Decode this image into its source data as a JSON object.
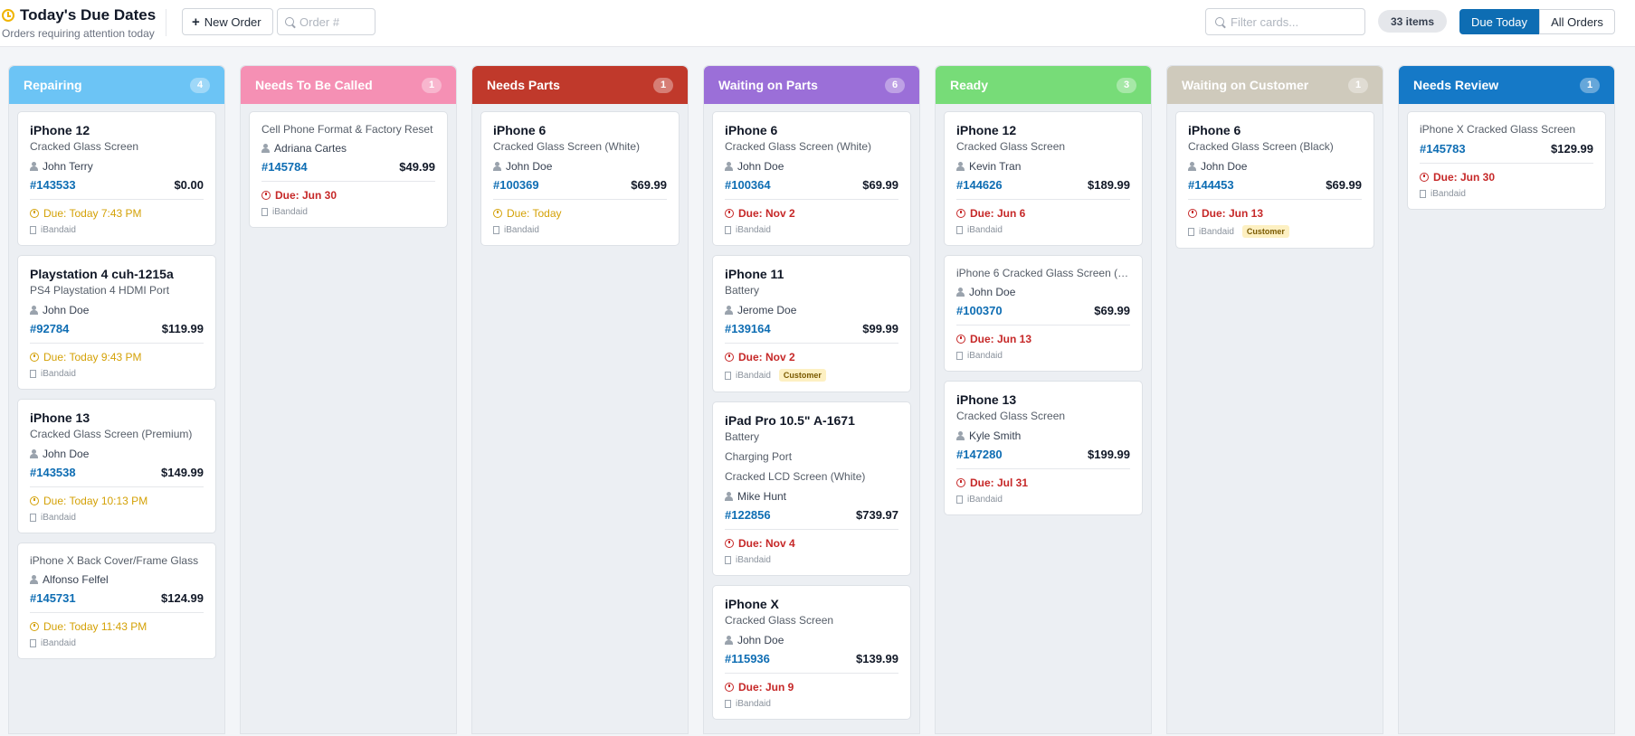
{
  "header": {
    "title": "Today's Due Dates",
    "subtitle": "Orders requiring attention today",
    "new_order_label": "New Order",
    "order_search_placeholder": "Order #",
    "filter_placeholder": "Filter cards...",
    "items_count": "33 items",
    "tabs": [
      "Due Today",
      "All Orders"
    ]
  },
  "colors": {
    "repairing": "#6cc4f5",
    "needs_called": "#f590b4",
    "needs_parts": "#c0392b",
    "waiting_parts": "#9b6fd8",
    "ready": "#77dc78",
    "waiting_customer": "#cfcabc",
    "needs_review": "#1579c7"
  },
  "columns": [
    {
      "title": "Repairing",
      "count": "4",
      "cards": [
        {
          "device": "iPhone 12",
          "services": [
            "Cracked Glass Screen"
          ],
          "customer": "John Terry",
          "order": "#143533",
          "price": "$0.00",
          "due": "Due: Today 7:43 PM",
          "due_type": "today",
          "location": "iBandaid"
        },
        {
          "device": "Playstation 4 cuh-1215a",
          "services": [
            "PS4 Playstation 4 HDMI Port"
          ],
          "customer": "John Doe",
          "order": "#92784",
          "price": "$119.99",
          "due": "Due: Today 9:43 PM",
          "due_type": "today",
          "location": "iBandaid"
        },
        {
          "device": "iPhone 13",
          "services": [
            "Cracked Glass Screen (Premium)"
          ],
          "customer": "John Doe",
          "order": "#143538",
          "price": "$149.99",
          "due": "Due: Today 10:13 PM",
          "due_type": "today",
          "location": "iBandaid"
        },
        {
          "device": "",
          "services": [
            "iPhone X Back Cover/Frame Glass"
          ],
          "customer": "Alfonso Felfel",
          "order": "#145731",
          "price": "$124.99",
          "due": "Due: Today 11:43 PM",
          "due_type": "today",
          "location": "iBandaid"
        }
      ]
    },
    {
      "title": "Needs To Be Called",
      "count": "1",
      "cards": [
        {
          "device": "",
          "services": [
            "Cell Phone Format & Factory Reset"
          ],
          "customer": "Adriana Cartes",
          "order": "#145784",
          "price": "$49.99",
          "due": "Due: Jun 30",
          "due_type": "late",
          "location": "iBandaid"
        }
      ]
    },
    {
      "title": "Needs Parts",
      "count": "1",
      "cards": [
        {
          "device": "iPhone 6",
          "services": [
            "Cracked Glass Screen (White)"
          ],
          "customer": "John Doe",
          "order": "#100369",
          "price": "$69.99",
          "due": "Due: Today",
          "due_type": "today",
          "location": "iBandaid"
        }
      ]
    },
    {
      "title": "Waiting on Parts",
      "count": "6",
      "cards": [
        {
          "device": "iPhone 6",
          "services": [
            "Cracked Glass Screen (White)"
          ],
          "customer": "John Doe",
          "order": "#100364",
          "price": "$69.99",
          "due": "Due: Nov 2",
          "due_type": "late",
          "location": "iBandaid"
        },
        {
          "device": "iPhone 11",
          "services": [
            "Battery"
          ],
          "customer": "Jerome Doe",
          "order": "#139164",
          "price": "$99.99",
          "due": "Due: Nov 2",
          "due_type": "late",
          "location": "iBandaid",
          "tag": "Customer"
        },
        {
          "device": "iPad Pro 10.5\" A-1671",
          "services": [
            "Battery",
            "Charging Port",
            "Cracked LCD Screen (White)"
          ],
          "customer": "Mike Hunt",
          "order": "#122856",
          "price": "$739.97",
          "due": "Due: Nov 4",
          "due_type": "late",
          "location": "iBandaid"
        },
        {
          "device": "iPhone X",
          "services": [
            "Cracked Glass Screen"
          ],
          "customer": "John Doe",
          "order": "#115936",
          "price": "$139.99",
          "due": "Due: Jun 9",
          "due_type": "late",
          "location": "iBandaid"
        }
      ]
    },
    {
      "title": "Ready",
      "count": "3",
      "cards": [
        {
          "device": "iPhone 12",
          "services": [
            "Cracked Glass Screen"
          ],
          "customer": "Kevin Tran",
          "order": "#144626",
          "price": "$189.99",
          "due": "Due: Jun 6",
          "due_type": "late",
          "location": "iBandaid"
        },
        {
          "device": "",
          "services": [
            "iPhone 6 Cracked Glass Screen (Bla..."
          ],
          "customer": "John Doe",
          "order": "#100370",
          "price": "$69.99",
          "due": "Due: Jun 13",
          "due_type": "late",
          "location": "iBandaid"
        },
        {
          "device": "iPhone 13",
          "services": [
            "Cracked Glass Screen"
          ],
          "customer": "Kyle Smith",
          "order": "#147280",
          "price": "$199.99",
          "due": "Due: Jul 31",
          "due_type": "late",
          "location": "iBandaid"
        }
      ]
    },
    {
      "title": "Waiting on Customer",
      "count": "1",
      "cards": [
        {
          "device": "iPhone 6",
          "services": [
            "Cracked Glass Screen (Black)"
          ],
          "customer": "John Doe",
          "order": "#144453",
          "price": "$69.99",
          "due": "Due: Jun 13",
          "due_type": "late",
          "location": "iBandaid",
          "tag": "Customer"
        }
      ]
    },
    {
      "title": "Needs Review",
      "count": "1",
      "cards": [
        {
          "device": "",
          "services": [
            "iPhone X Cracked Glass Screen"
          ],
          "customer": "",
          "order": "#145783",
          "price": "$129.99",
          "due": "Due: Jun 30",
          "due_type": "late",
          "location": "iBandaid"
        }
      ]
    }
  ]
}
